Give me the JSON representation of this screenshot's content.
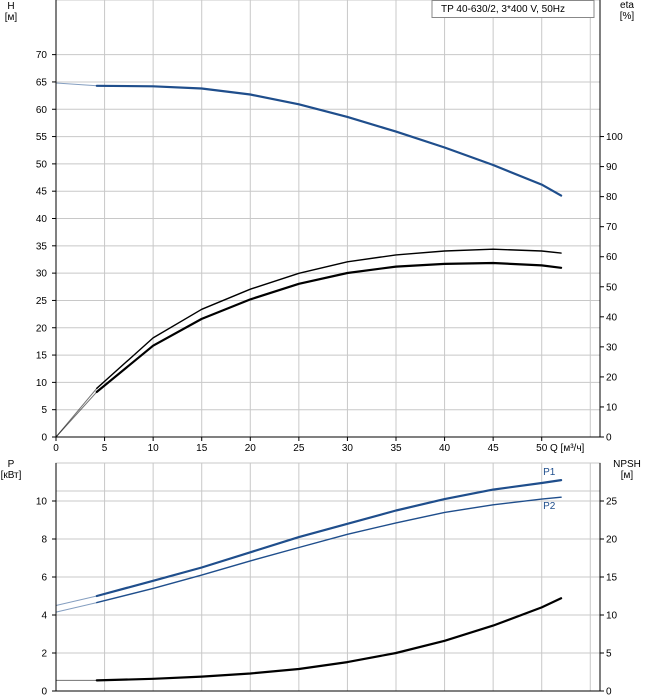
{
  "chart_data": [
    {
      "type": "line",
      "title": "TP 40-630/2, 3*400 V, 50Hz",
      "xlabel": "Q [м³/ч]",
      "ylabel": "H\n[м]",
      "y2label": "eta\n[%]",
      "xlim": [
        0,
        56
      ],
      "ylim": [
        0,
        80
      ],
      "y2lim": [
        0,
        145.45
      ],
      "xticks": [
        0,
        5,
        10,
        15,
        20,
        25,
        30,
        35,
        40,
        45,
        50
      ],
      "yticks": [
        0,
        5,
        10,
        15,
        20,
        25,
        30,
        35,
        40,
        45,
        50,
        55,
        60,
        65,
        70
      ],
      "y2ticks": [
        0,
        10,
        20,
        30,
        40,
        50,
        60,
        70,
        80,
        90,
        100
      ],
      "grid": true,
      "series": [
        {
          "axis": "left",
          "color": "#1f4e8c",
          "x": [
            0,
            4.2,
            10,
            15,
            20,
            25,
            30,
            35,
            40,
            45,
            50,
            52
          ],
          "y": [
            64.8,
            64.3,
            64.2,
            63.8,
            62.7,
            60.9,
            58.6,
            55.9,
            53.0,
            49.8,
            46.2,
            44.2
          ]
        },
        {
          "axis": "right",
          "color": "#000000",
          "x": [
            0,
            4.2,
            10,
            15,
            20,
            25,
            30,
            35,
            40,
            45,
            50,
            52
          ],
          "y": [
            0,
            16.2,
            33.0,
            42.5,
            49.2,
            54.5,
            58.3,
            60.6,
            61.9,
            62.5,
            61.9,
            61.2
          ]
        },
        {
          "axis": "right",
          "color": "#000000",
          "x": [
            0,
            4.2,
            10,
            15,
            20,
            25,
            30,
            35,
            40,
            45,
            50,
            52
          ],
          "y": [
            0,
            15.0,
            30.4,
            39.3,
            45.8,
            51.0,
            54.6,
            56.7,
            57.6,
            57.9,
            57.1,
            56.3
          ]
        }
      ]
    },
    {
      "type": "line",
      "xlim": [
        0,
        56
      ],
      "ylabel": "P\n[кВт]",
      "y2label": "NPSH\n[м]",
      "ylim": [
        0,
        12
      ],
      "y2lim": [
        0,
        30
      ],
      "yticks": [
        0,
        2,
        4,
        6,
        8,
        10
      ],
      "y2ticks": [
        0,
        5,
        10,
        15,
        20,
        25
      ],
      "grid": true,
      "series": [
        {
          "name": "P1",
          "axis": "left",
          "color": "#1f4e8c",
          "x": [
            0,
            4.2,
            10,
            15,
            20,
            25,
            30,
            35,
            40,
            45,
            50,
            52
          ],
          "y": [
            4.5,
            5.0,
            5.8,
            6.5,
            7.3,
            8.1,
            8.8,
            9.5,
            10.1,
            10.6,
            10.95,
            11.1
          ]
        },
        {
          "name": "P2",
          "axis": "left",
          "color": "#1f4e8c",
          "x": [
            0,
            4.2,
            10,
            15,
            20,
            25,
            30,
            35,
            40,
            45,
            50,
            52
          ],
          "y": [
            4.15,
            4.65,
            5.4,
            6.1,
            6.85,
            7.55,
            8.25,
            8.85,
            9.4,
            9.8,
            10.1,
            10.2
          ]
        },
        {
          "axis": "right",
          "color": "#000000",
          "x": [
            0,
            4.2,
            10,
            15,
            20,
            25,
            30,
            35,
            40,
            45,
            50,
            52
          ],
          "y": [
            1.4,
            1.4,
            1.6,
            1.9,
            2.3,
            2.9,
            3.8,
            5.0,
            6.6,
            8.6,
            11.0,
            12.2
          ]
        }
      ]
    }
  ]
}
